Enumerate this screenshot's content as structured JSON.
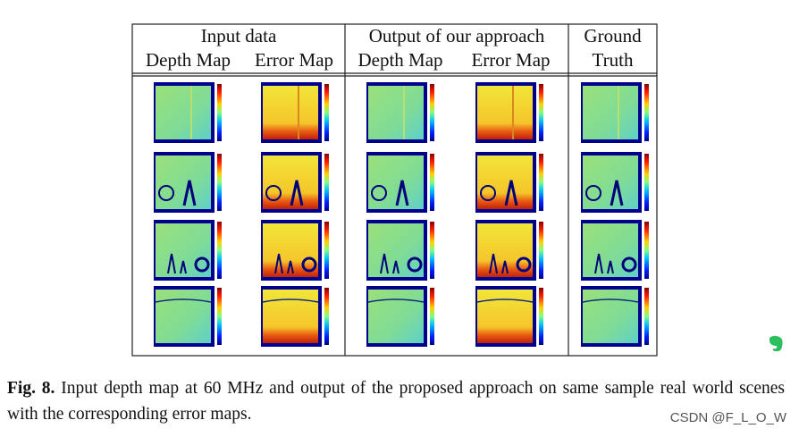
{
  "header": {
    "groups": [
      "Input data",
      "Output of our approach",
      "Ground Truth"
    ],
    "subheaders": [
      "Depth Map",
      "Error Map",
      "Depth Map",
      "Error Map"
    ]
  },
  "caption": {
    "label": "Fig. 8.",
    "text": "Input depth map at 60 MHz and output of the proposed approach on same sample real world scenes with the corresponding error maps."
  },
  "watermark": "CSDN @F_L_O_W"
}
